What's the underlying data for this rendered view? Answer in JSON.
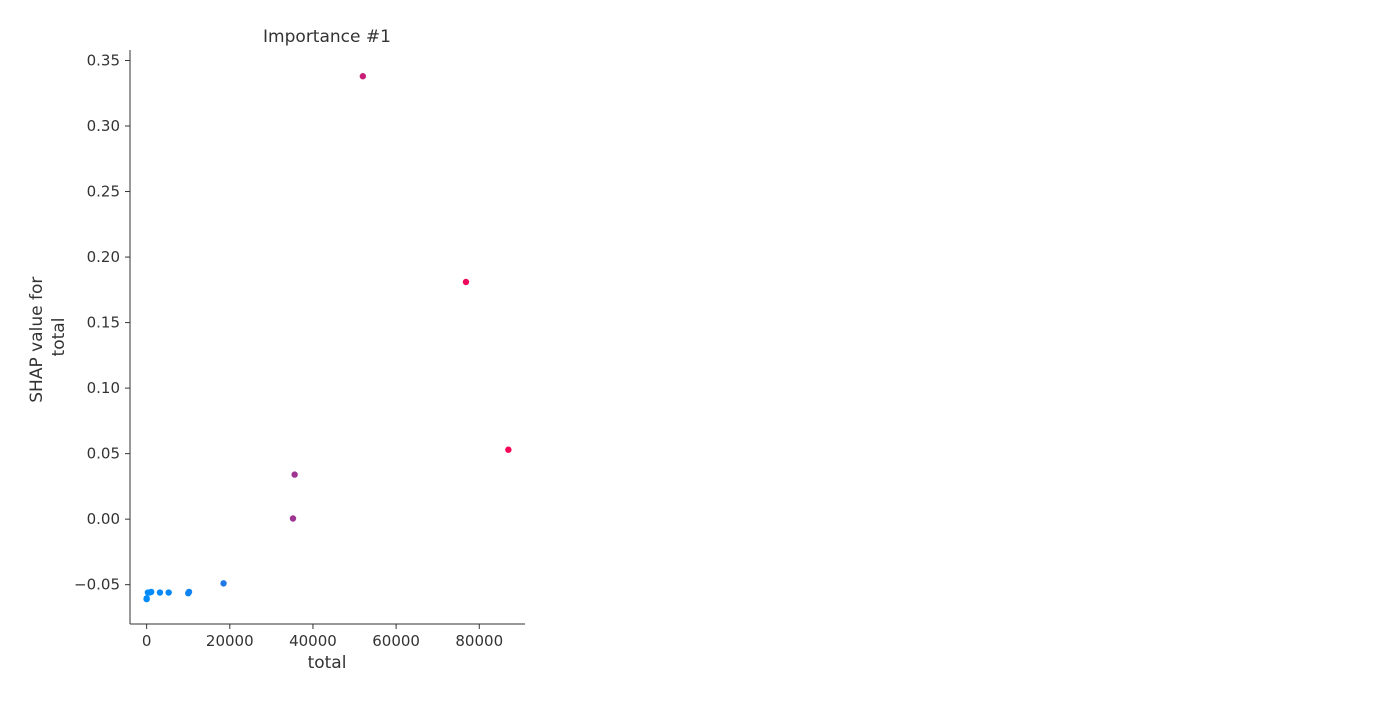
{
  "chart_data": {
    "type": "scatter",
    "title": "Importance #1",
    "xlabel": "total",
    "ylabel_lines": [
      "SHAP value for",
      "total"
    ],
    "xlim": [
      -4000,
      91000
    ],
    "ylim": [
      -0.08,
      0.358
    ],
    "xticks": [
      0,
      20000,
      40000,
      60000,
      80000
    ],
    "yticks": [
      -0.05,
      0.0,
      0.05,
      0.1,
      0.15,
      0.2,
      0.25,
      0.3,
      0.35
    ],
    "ytick_labels": [
      "−0.05",
      "0.00",
      "0.05",
      "0.10",
      "0.15",
      "0.20",
      "0.25",
      "0.30",
      "0.35"
    ],
    "grid": false,
    "color_low": "#008bfb",
    "color_high": "#ff0052",
    "points": [
      {
        "x": 0,
        "y": -0.061,
        "c": 0.0
      },
      {
        "x": 0,
        "y": -0.0605,
        "c": 0.0
      },
      {
        "x": 300,
        "y": -0.056,
        "c": 0.0
      },
      {
        "x": 700,
        "y": -0.056,
        "c": 0.0
      },
      {
        "x": 1100,
        "y": -0.0555,
        "c": 0.0
      },
      {
        "x": 3200,
        "y": -0.056,
        "c": 0.02
      },
      {
        "x": 5300,
        "y": -0.056,
        "c": 0.03
      },
      {
        "x": 10000,
        "y": -0.0565,
        "c": 0.06
      },
      {
        "x": 10200,
        "y": -0.0555,
        "c": 0.06
      },
      {
        "x": 18500,
        "y": -0.049,
        "c": 0.12
      },
      {
        "x": 35200,
        "y": 0.0005,
        "c": 0.62
      },
      {
        "x": 35600,
        "y": 0.034,
        "c": 0.62
      },
      {
        "x": 52000,
        "y": 0.338,
        "c": 0.78
      },
      {
        "x": 76800,
        "y": 0.181,
        "c": 0.93
      },
      {
        "x": 87000,
        "y": 0.053,
        "c": 0.97
      }
    ]
  }
}
